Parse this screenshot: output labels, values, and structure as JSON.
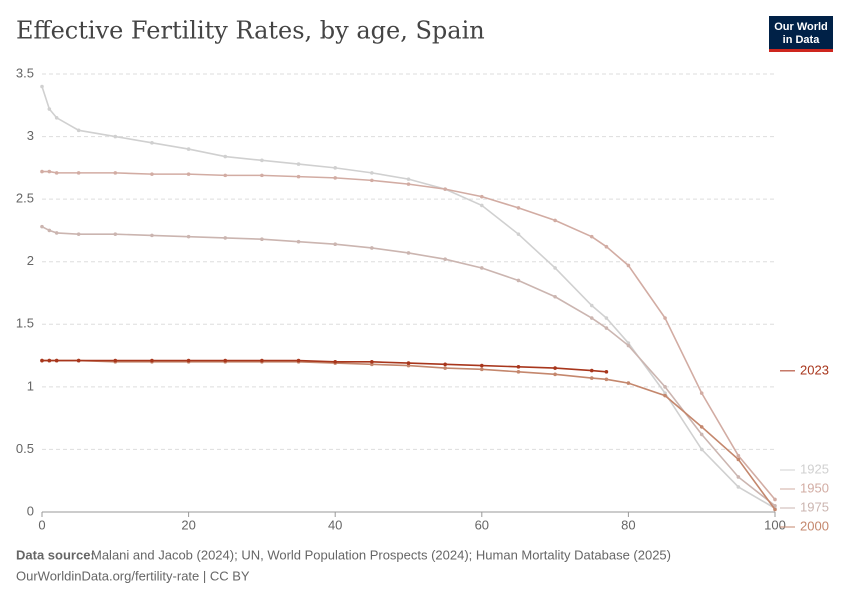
{
  "chart_data": {
    "type": "line",
    "title": "Effective Fertility Rates, by age, Spain",
    "logo": [
      "Our World",
      "in Data"
    ],
    "source_label": "Data source:",
    "source": "Malani and Jacob (2024); UN, World Population Prospects (2024); Human Mortality Database (2025)",
    "footer": "OurWorldinData.org/fertility-rate | CC BY",
    "x": [
      0,
      1,
      2,
      5,
      10,
      15,
      20,
      25,
      30,
      35,
      40,
      45,
      50,
      55,
      60,
      65,
      70,
      75,
      77,
      80,
      85,
      90,
      95,
      100
    ],
    "xlim": [
      0,
      100
    ],
    "xticks": [
      0,
      20,
      40,
      60,
      80,
      100
    ],
    "ylim": [
      0,
      3.5
    ],
    "yticks": [
      0,
      0.5,
      1,
      1.5,
      2,
      2.5,
      3,
      3.5
    ],
    "grid": true,
    "series": [
      {
        "name": "1925",
        "color": "#d0d0d0",
        "values": [
          3.4,
          3.22,
          3.15,
          3.05,
          3.0,
          2.95,
          2.9,
          2.84,
          2.81,
          2.78,
          2.75,
          2.71,
          2.66,
          2.58,
          2.45,
          2.22,
          1.95,
          1.65,
          1.55,
          1.35,
          0.95,
          0.5,
          0.2,
          0.03
        ]
      },
      {
        "name": "1950",
        "color": "#d2aca3",
        "values": [
          2.72,
          2.72,
          2.71,
          2.71,
          2.71,
          2.7,
          2.7,
          2.69,
          2.69,
          2.68,
          2.67,
          2.65,
          2.62,
          2.58,
          2.52,
          2.43,
          2.33,
          2.2,
          2.12,
          1.97,
          1.55,
          0.95,
          0.45,
          0.1
        ]
      },
      {
        "name": "1975",
        "color": "#cbb5b0",
        "values": [
          2.28,
          2.25,
          2.23,
          2.22,
          2.22,
          2.21,
          2.2,
          2.19,
          2.18,
          2.16,
          2.14,
          2.11,
          2.07,
          2.02,
          1.95,
          1.85,
          1.72,
          1.55,
          1.47,
          1.33,
          1.0,
          0.62,
          0.28,
          0.05
        ]
      },
      {
        "name": "2000",
        "color": "#c4876d",
        "values": [
          1.21,
          1.21,
          1.21,
          1.21,
          1.2,
          1.2,
          1.2,
          1.2,
          1.2,
          1.2,
          1.19,
          1.18,
          1.17,
          1.15,
          1.14,
          1.12,
          1.1,
          1.07,
          1.06,
          1.03,
          0.93,
          0.68,
          0.42,
          0.02
        ]
      },
      {
        "name": "2023",
        "color": "#a8361c",
        "values": [
          1.21,
          1.21,
          1.21,
          1.21,
          1.21,
          1.21,
          1.21,
          1.21,
          1.21,
          1.21,
          1.2,
          1.2,
          1.19,
          1.18,
          1.17,
          1.16,
          1.15,
          1.13,
          1.12,
          null,
          null,
          null,
          null,
          null
        ]
      }
    ]
  }
}
